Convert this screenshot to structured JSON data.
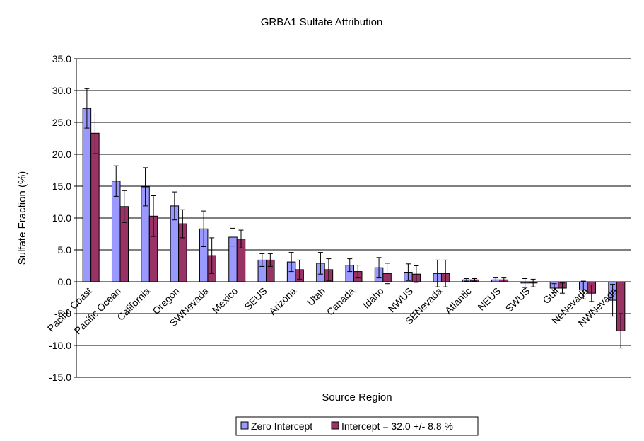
{
  "chart_data": {
    "type": "bar",
    "title": "GRBA1 Sulfate Attribution",
    "xlabel": "Source Region",
    "ylabel": "Sulfate Fraction (%)",
    "ylim": [
      -15,
      35
    ],
    "ytick_step": 5,
    "ytick_labels": [
      "35.0",
      "30.0",
      "25.0",
      "20.0",
      "15.0",
      "10.0",
      "5.0",
      "0.0",
      "-5.0",
      "-10.0",
      "-15.0"
    ],
    "grid": true,
    "legend_position": "bottom",
    "categories": [
      "Pacific Coast",
      "Pacific Ocean",
      "California",
      "Oregon",
      "SWNevada",
      "Mexico",
      "SEUS",
      "Arizona",
      "Utah",
      "Canada",
      "Idaho",
      "NWUS",
      "SENevada",
      "Atlantic",
      "NEUS",
      "SWUS",
      "Gulf",
      "NeNevada",
      "NWNevada"
    ],
    "series": [
      {
        "name": "Zero Intercept",
        "color": "#9999ff",
        "values": [
          27.2,
          15.8,
          14.9,
          11.9,
          8.3,
          7.0,
          3.4,
          3.1,
          2.9,
          2.6,
          2.2,
          1.5,
          1.3,
          0.3,
          0.3,
          -0.2,
          -1.0,
          -1.3,
          -2.9
        ],
        "errors": [
          3.1,
          2.4,
          3.0,
          2.2,
          2.8,
          1.4,
          1.0,
          1.5,
          1.7,
          1.0,
          1.6,
          1.3,
          2.1,
          0.2,
          0.3,
          0.7,
          0.7,
          1.4,
          2.5
        ]
      },
      {
        "name": "Intercept = 32.0 +/- 8.8 %",
        "color": "#993366",
        "values": [
          23.3,
          11.8,
          10.3,
          9.1,
          4.1,
          6.7,
          3.4,
          1.9,
          1.9,
          1.6,
          1.3,
          1.2,
          1.3,
          0.3,
          0.3,
          -0.2,
          -1.0,
          -1.8,
          -7.7
        ],
        "errors": [
          3.2,
          2.5,
          3.2,
          2.2,
          2.8,
          1.4,
          1.0,
          1.5,
          1.7,
          1.0,
          1.6,
          1.3,
          2.1,
          0.2,
          0.3,
          0.6,
          0.8,
          1.3,
          2.7
        ]
      }
    ]
  }
}
